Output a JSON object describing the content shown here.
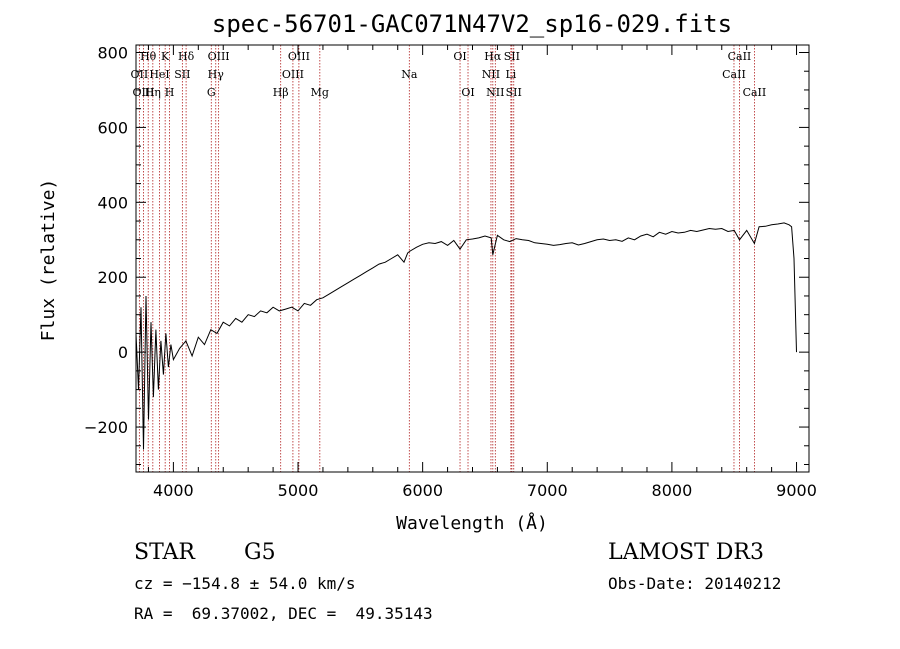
{
  "chart_data": {
    "type": "line",
    "title": "spec-56701-GAC071N47V2_sp16-029.fits",
    "xlabel": "Wavelength (Å)",
    "ylabel": "Flux (relative)",
    "xlim": [
      3700,
      9100
    ],
    "ylim": [
      -320,
      820
    ],
    "x_ticks": [
      4000,
      5000,
      6000,
      7000,
      8000,
      9000
    ],
    "x_tick_labels": [
      "4000",
      "5000",
      "6000",
      "7000",
      "8000",
      "9000"
    ],
    "y_ticks": [
      -200,
      0,
      200,
      400,
      600,
      800
    ],
    "y_tick_labels": [
      "−200",
      "0",
      "200",
      "400",
      "600",
      "800"
    ],
    "series": [
      {
        "name": "flux",
        "x": [
          3700,
          3720,
          3740,
          3760,
          3780,
          3800,
          3820,
          3840,
          3860,
          3880,
          3900,
          3920,
          3940,
          3960,
          3980,
          4000,
          4050,
          4100,
          4150,
          4200,
          4250,
          4300,
          4350,
          4400,
          4450,
          4500,
          4550,
          4600,
          4650,
          4700,
          4750,
          4800,
          4850,
          4900,
          4950,
          5000,
          5050,
          5100,
          5150,
          5200,
          5250,
          5300,
          5350,
          5400,
          5450,
          5500,
          5550,
          5600,
          5650,
          5700,
          5750,
          5800,
          5850,
          5880,
          5900,
          5950,
          6000,
          6050,
          6100,
          6150,
          6200,
          6250,
          6300,
          6350,
          6400,
          6450,
          6500,
          6550,
          6563,
          6600,
          6650,
          6700,
          6750,
          6800,
          6850,
          6900,
          6950,
          7000,
          7050,
          7100,
          7150,
          7200,
          7250,
          7300,
          7350,
          7400,
          7450,
          7500,
          7550,
          7600,
          7650,
          7700,
          7750,
          7800,
          7850,
          7900,
          7950,
          8000,
          8050,
          8100,
          8150,
          8200,
          8250,
          8300,
          8350,
          8400,
          8450,
          8500,
          8542,
          8600,
          8662,
          8700,
          8750,
          8800,
          8850,
          8900,
          8940,
          8960,
          8980,
          9000
        ],
        "y": [
          50,
          -100,
          120,
          -260,
          150,
          -180,
          80,
          -120,
          60,
          -100,
          30,
          -60,
          50,
          -40,
          20,
          -20,
          10,
          30,
          -10,
          40,
          20,
          60,
          50,
          80,
          70,
          90,
          80,
          100,
          95,
          110,
          105,
          120,
          110,
          115,
          120,
          110,
          130,
          125,
          140,
          145,
          155,
          165,
          175,
          185,
          195,
          205,
          215,
          225,
          235,
          240,
          250,
          260,
          240,
          265,
          270,
          280,
          288,
          292,
          290,
          295,
          285,
          298,
          275,
          300,
          302,
          305,
          310,
          305,
          260,
          312,
          300,
          295,
          303,
          300,
          298,
          292,
          290,
          288,
          285,
          287,
          290,
          292,
          286,
          290,
          295,
          300,
          302,
          298,
          300,
          296,
          305,
          300,
          310,
          315,
          308,
          320,
          315,
          322,
          318,
          320,
          325,
          322,
          326,
          330,
          328,
          330,
          322,
          325,
          300,
          325,
          290,
          335,
          336,
          340,
          342,
          345,
          340,
          335,
          250,
          0
        ]
      }
    ],
    "lines": [
      {
        "label": "Hθ",
        "wavelength": 3798,
        "row": 0
      },
      {
        "label": "OII",
        "wavelength": 3727,
        "row": 1
      },
      {
        "label": "OIII",
        "wavelength": 3760,
        "row": 2
      },
      {
        "label": "Hη",
        "wavelength": 3835,
        "row": 2
      },
      {
        "label": "HeI",
        "wavelength": 3889,
        "row": 1
      },
      {
        "label": "K",
        "wavelength": 3934,
        "row": 0
      },
      {
        "label": "H",
        "wavelength": 3969,
        "row": 2
      },
      {
        "label": "SII",
        "wavelength": 4072,
        "row": 1
      },
      {
        "label": "Hδ",
        "wavelength": 4102,
        "row": 0
      },
      {
        "label": "OIII",
        "wavelength": 4363,
        "row": 0
      },
      {
        "label": "Hγ",
        "wavelength": 4340,
        "row": 1
      },
      {
        "label": "G",
        "wavelength": 4304,
        "row": 2
      },
      {
        "label": "Hβ",
        "wavelength": 4861,
        "row": 2
      },
      {
        "label": "OIII",
        "wavelength": 5007,
        "row": 0
      },
      {
        "label": "OIII",
        "wavelength": 4959,
        "row": 1
      },
      {
        "label": "Mg",
        "wavelength": 5175,
        "row": 2
      },
      {
        "label": "Na",
        "wavelength": 5893,
        "row": 1
      },
      {
        "label": "OI",
        "wavelength": 6300,
        "row": 0
      },
      {
        "label": "OI",
        "wavelength": 6364,
        "row": 2
      },
      {
        "label": "Hα",
        "wavelength": 6563,
        "row": 0
      },
      {
        "label": "NII",
        "wavelength": 6548,
        "row": 1
      },
      {
        "label": "NII",
        "wavelength": 6583,
        "row": 2
      },
      {
        "label": "SII",
        "wavelength": 6716,
        "row": 0
      },
      {
        "label": "Li",
        "wavelength": 6708,
        "row": 1
      },
      {
        "label": "SII",
        "wavelength": 6731,
        "row": 2
      },
      {
        "label": "CaII",
        "wavelength": 8542,
        "row": 0
      },
      {
        "label": "CaII",
        "wavelength": 8498,
        "row": 1
      },
      {
        "label": "CaII",
        "wavelength": 8662,
        "row": 2
      }
    ]
  },
  "info": {
    "class": "STAR",
    "subclass": "G5",
    "survey": "LAMOST DR3",
    "cz": "cz = −154.8 ± 54.0 km/s",
    "obs_date": "Obs-Date: 20140212",
    "radec": "RA =  69.37002, DEC =  49.35143"
  },
  "colors": {
    "spectrum": "#000000",
    "line_marker": "#b22222",
    "axis": "#000000"
  }
}
